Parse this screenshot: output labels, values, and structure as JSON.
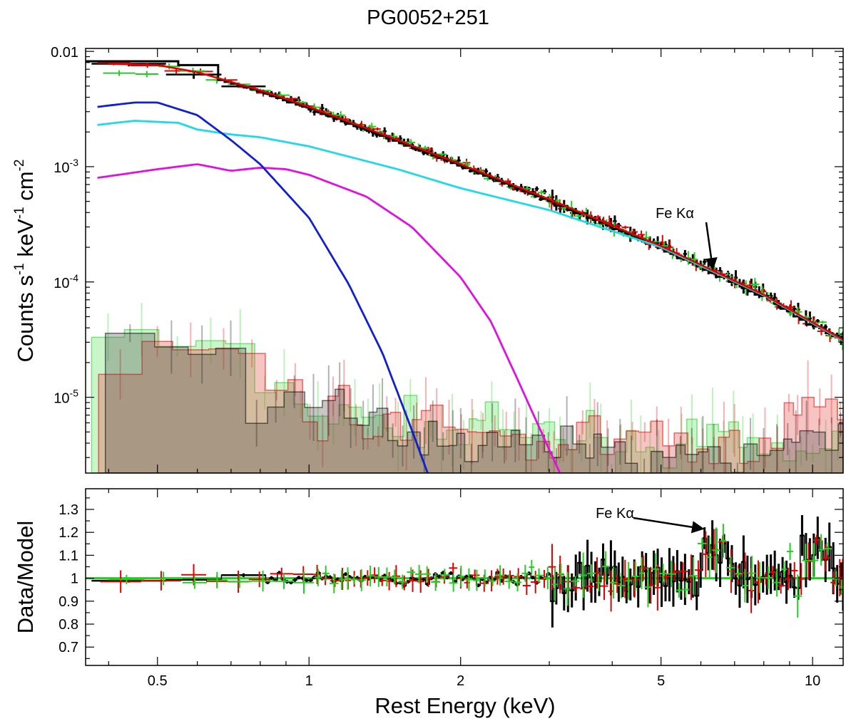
{
  "chart_data": [
    {
      "type": "line",
      "panel": "spectrum",
      "title": "PG0052+251",
      "ylabel_parts": [
        "Counts s",
        "-1",
        " keV",
        "-1",
        " cm",
        "-2"
      ],
      "xscale": "log",
      "yscale": "log",
      "xlim": [
        0.36,
        11.5
      ],
      "ylim": [
        2.2e-06,
        0.0106
      ],
      "y_major_ticks": [
        {
          "value": 0.01,
          "base": "0.01",
          "exp": ""
        },
        {
          "value": 0.001,
          "base": "10",
          "exp": "-3"
        },
        {
          "value": 0.0001,
          "base": "10",
          "exp": "-4"
        },
        {
          "value": 1e-05,
          "base": "10",
          "exp": "-5"
        }
      ],
      "annotation": {
        "text": "Fe Kα",
        "energy_keV": 6.4
      },
      "series": [
        {
          "name": "Total model",
          "color": "#000000",
          "kind": "powerlaw_steps",
          "x0": 0.36,
          "x1": 11.5,
          "breaks": [
            0.55,
            0.66
          ],
          "values": [
            0.0082,
            0.0076
          ]
        },
        {
          "name": "Model (red)",
          "color": "#e00000",
          "kind": "model_line",
          "x": [
            0.4,
            0.5,
            0.6,
            0.8,
            1.0,
            1.5,
            2.0,
            3.0,
            5.0,
            8.0,
            11.5
          ],
          "y": [
            0.0078,
            0.0076,
            0.0066,
            0.0046,
            0.0033,
            0.0017,
            0.00105,
            0.00052,
            0.000205,
            7.75e-05,
            3.15e-05
          ]
        },
        {
          "name": "Blue component",
          "color": "#1020d0",
          "kind": "model_line",
          "x": [
            0.38,
            0.45,
            0.5,
            0.6,
            0.7,
            0.8,
            1.0,
            1.2,
            1.4,
            1.6,
            1.72
          ],
          "y": [
            0.0033,
            0.0036,
            0.0036,
            0.0028,
            0.0017,
            0.00105,
            0.00036,
            9.5e-05,
            2.4e-05,
            5.2e-06,
            2.2e-06
          ]
        },
        {
          "name": "Cyan component",
          "color": "#20d8e8",
          "kind": "model_line",
          "x": [
            0.38,
            0.45,
            0.55,
            0.6,
            0.7,
            0.8,
            1.0,
            1.5,
            2.0,
            3.0,
            5.0,
            8.0,
            11.5
          ],
          "y": [
            0.0023,
            0.0025,
            0.0024,
            0.0021,
            0.0019,
            0.0018,
            0.0015,
            0.00095,
            0.00065,
            0.00042,
            0.0002,
            7.65e-05,
            3.1e-05
          ]
        },
        {
          "name": "Magenta component",
          "color": "#e010e0",
          "kind": "model_line",
          "x": [
            0.38,
            0.5,
            0.6,
            0.7,
            0.8,
            0.9,
            1.0,
            1.3,
            1.6,
            2.0,
            2.3,
            2.6,
            3.0,
            3.15
          ],
          "y": [
            0.0008,
            0.00095,
            0.00105,
            0.00092,
            0.00098,
            0.00095,
            0.00085,
            0.00055,
            0.0003,
            0.00011,
            4.5e-05,
            1.4e-05,
            3.5e-06,
            2.2e-06
          ]
        },
        {
          "name": "Background (black)",
          "color": "#000000",
          "kind": "background",
          "x": [
            0.38,
            0.52,
            0.6,
            0.7,
            0.8,
            1.0,
            1.5,
            2.0,
            3.0,
            5.0,
            8.0,
            11.5
          ],
          "y": [
            4.8e-05,
            3.5e-05,
            2.5e-05,
            2.2e-05,
            1.1e-05,
            8.5e-06,
            5.5e-06,
            4.5e-06,
            4e-06,
            3.5e-06,
            3.5e-06,
            4.5e-06
          ]
        },
        {
          "name": "Background (red)",
          "color": "#e00000",
          "kind": "background",
          "x": [
            0.38,
            0.52,
            0.6,
            0.7,
            0.8,
            1.0,
            1.5,
            2.0,
            3.0,
            5.0,
            8.0,
            9.5,
            11.5
          ],
          "y": [
            2.2e-05,
            2.8e-05,
            2.6e-05,
            2.2e-05,
            1.2e-05,
            8.5e-06,
            5.5e-06,
            5e-06,
            4.5e-06,
            4e-06,
            3.5e-06,
            8.5e-06,
            8.5e-06
          ]
        },
        {
          "name": "Background (green)",
          "color": "#20d020",
          "kind": "background",
          "x": [
            0.38,
            0.52,
            0.6,
            0.7,
            0.8,
            1.0,
            1.5,
            2.0,
            3.0,
            5.0,
            8.0,
            11.5
          ],
          "y": [
            3.2e-05,
            2.7e-05,
            2.8e-05,
            2.6e-05,
            1.3e-05,
            9e-06,
            6e-06,
            5e-06,
            4.5e-06,
            4e-06,
            3.5e-06,
            4e-06
          ]
        },
        {
          "name": "Data (black)",
          "color": "#000000",
          "kind": "data"
        },
        {
          "name": "Data (red)",
          "color": "#e00000",
          "kind": "data"
        },
        {
          "name": "Data (green)",
          "color": "#20d020",
          "kind": "data"
        }
      ]
    },
    {
      "type": "scatter",
      "panel": "ratio",
      "xlabel": "Rest Energy (keV)",
      "ylabel": "Data/Model",
      "xscale": "log",
      "xlim": [
        0.36,
        11.5
      ],
      "ylim": [
        0.62,
        1.39
      ],
      "x_ticks": [
        {
          "value": 0.5,
          "label": "0.5"
        },
        {
          "value": 1,
          "label": "1"
        },
        {
          "value": 2,
          "label": "2"
        },
        {
          "value": 5,
          "label": "5"
        },
        {
          "value": 10,
          "label": "10"
        }
      ],
      "y_ticks": [
        {
          "value": 0.7,
          "label": "0.7"
        },
        {
          "value": 0.8,
          "label": "0.8"
        },
        {
          "value": 0.9,
          "label": "0.9"
        },
        {
          "value": 1.0,
          "label": "1"
        },
        {
          "value": 1.1,
          "label": "1.1"
        },
        {
          "value": 1.2,
          "label": "1.2"
        },
        {
          "value": 1.3,
          "label": "1.3"
        }
      ],
      "reference_line": 1.0,
      "annotation": {
        "text": "Fe Kα",
        "energy_keV": 6.4
      },
      "series": [
        {
          "name": "Ratio (black)",
          "color": "#000000"
        },
        {
          "name": "Ratio (red)",
          "color": "#e00000"
        },
        {
          "name": "Ratio (green)",
          "color": "#20d020"
        }
      ]
    }
  ]
}
